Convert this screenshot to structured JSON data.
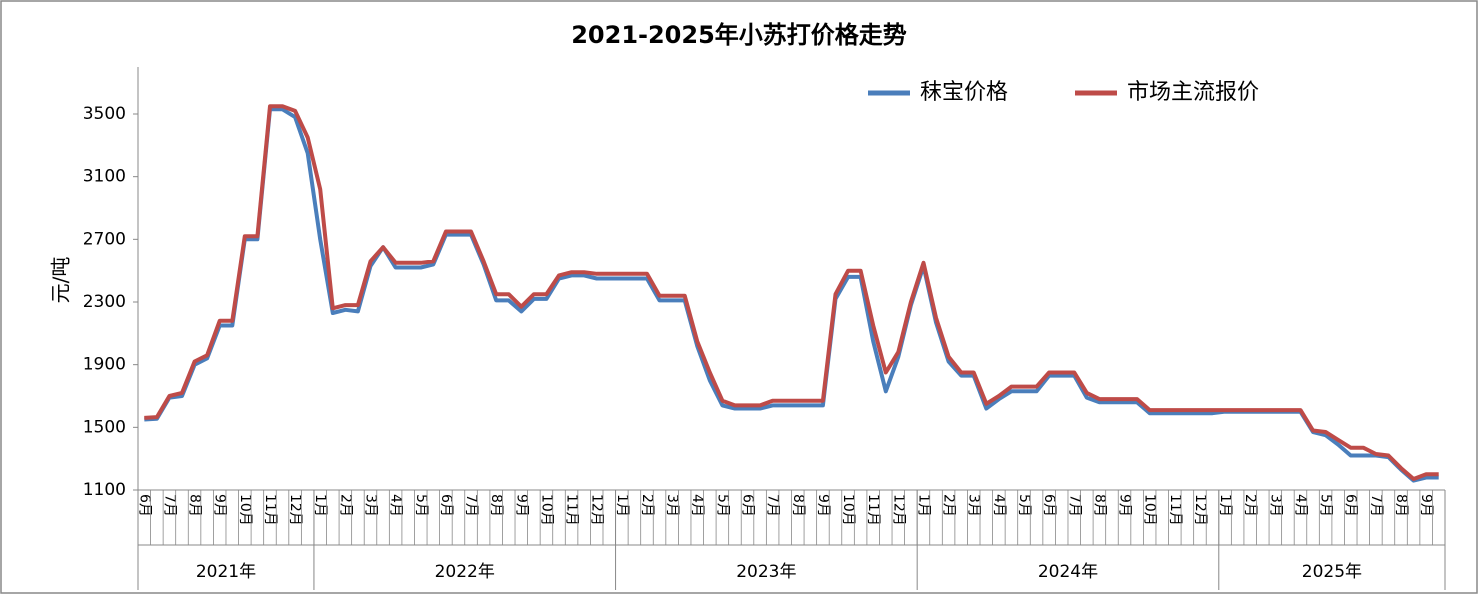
{
  "chart_data": {
    "type": "line",
    "title": "2021-2025年小苏打价格走势",
    "y_label": "元/吨",
    "year_groups": [
      {
        "label": "2021年",
        "categories": [
          "6月",
          null,
          "7月",
          null,
          "8月",
          null,
          "9月",
          null,
          "10月",
          null,
          "11月",
          null,
          "12月",
          null
        ]
      },
      {
        "label": "2022年",
        "categories": [
          "1月",
          null,
          "2月",
          null,
          "3月",
          null,
          "4月",
          null,
          "5月",
          null,
          "6月",
          null,
          "7月",
          null,
          "8月",
          null,
          "9月",
          null,
          "10月",
          null,
          "11月",
          null,
          "12月",
          null
        ]
      },
      {
        "label": "2023年",
        "categories": [
          "1月",
          null,
          "2月",
          null,
          "3月",
          null,
          "4月",
          null,
          "5月",
          null,
          "6月",
          null,
          "7月",
          null,
          "8月",
          null,
          "9月",
          null,
          "10月",
          null,
          "11月",
          null,
          "12月",
          null
        ]
      },
      {
        "label": "2024年",
        "categories": [
          "1月",
          null,
          "2月",
          null,
          "3月",
          null,
          "4月",
          null,
          "5月",
          null,
          "6月",
          null,
          "7月",
          null,
          "8月",
          null,
          "9月",
          null,
          "10月",
          null,
          "11月",
          null,
          "12月",
          null
        ]
      },
      {
        "label": "2025年",
        "categories": [
          "1月",
          null,
          "2月",
          null,
          "3月",
          null,
          "4月",
          null,
          "5月",
          null,
          "6月",
          null,
          "7月",
          null,
          "8月",
          null,
          "9月",
          null
        ]
      }
    ],
    "series": [
      {
        "name": "秣宝价格",
        "color": "#4a7ebb",
        "values": [
          1550,
          1555,
          1690,
          1700,
          1900,
          1940,
          2150,
          2150,
          2700,
          2700,
          3530,
          3530,
          3480,
          3250,
          2700,
          2230,
          2250,
          2240,
          2530,
          2650,
          2520,
          2520,
          2520,
          2540,
          2730,
          2730,
          2730,
          2540,
          2310,
          2310,
          2240,
          2320,
          2320,
          2450,
          2470,
          2470,
          2450,
          2450,
          2450,
          2450,
          2450,
          2310,
          2310,
          2310,
          2020,
          1800,
          1640,
          1620,
          1620,
          1620,
          1640,
          1640,
          1640,
          1640,
          1640,
          2320,
          2460,
          2460,
          2050,
          1730,
          1950,
          2280,
          2530,
          2170,
          1920,
          1830,
          1830,
          1620,
          1680,
          1730,
          1730,
          1730,
          1830,
          1830,
          1830,
          1690,
          1660,
          1660,
          1660,
          1660,
          1590,
          1590,
          1590,
          1590,
          1590,
          1590,
          1600,
          1600,
          1600,
          1600,
          1600,
          1600,
          1600,
          1470,
          1450,
          1390,
          1320,
          1320,
          1320,
          1310,
          1230,
          1160,
          1180,
          1180
        ]
      },
      {
        "name": "市场主流报价",
        "color": "#be4b48",
        "values": [
          1560,
          1565,
          1700,
          1720,
          1920,
          1960,
          2180,
          2180,
          2720,
          2720,
          3550,
          3550,
          3520,
          3350,
          3020,
          2260,
          2280,
          2280,
          2560,
          2650,
          2550,
          2550,
          2550,
          2560,
          2750,
          2750,
          2750,
          2560,
          2350,
          2350,
          2270,
          2350,
          2350,
          2470,
          2490,
          2490,
          2480,
          2480,
          2480,
          2480,
          2480,
          2340,
          2340,
          2340,
          2050,
          1850,
          1670,
          1640,
          1640,
          1640,
          1670,
          1670,
          1670,
          1670,
          1670,
          2350,
          2500,
          2500,
          2150,
          1850,
          1980,
          2300,
          2550,
          2200,
          1950,
          1850,
          1850,
          1650,
          1700,
          1760,
          1760,
          1760,
          1850,
          1850,
          1850,
          1720,
          1680,
          1680,
          1680,
          1680,
          1610,
          1610,
          1610,
          1610,
          1610,
          1610,
          1610,
          1610,
          1610,
          1610,
          1610,
          1610,
          1610,
          1480,
          1470,
          1420,
          1370,
          1370,
          1330,
          1320,
          1240,
          1170,
          1200,
          1200
        ]
      }
    ],
    "ylim": [
      1100,
      3800
    ],
    "yticks": [
      1100,
      1500,
      1900,
      2300,
      2700,
      3100,
      3500
    ],
    "legend": "top-right"
  }
}
